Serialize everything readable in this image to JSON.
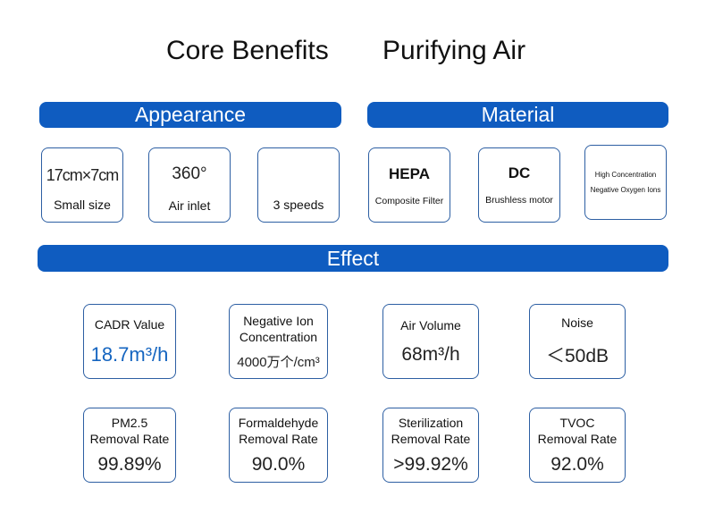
{
  "header": {
    "left_title": "Core Benefits",
    "right_title": "Purifying Air"
  },
  "sections": {
    "appearance": "Appearance",
    "material": "Material",
    "effect": "Effect"
  },
  "appearance": {
    "size": {
      "value": "17cm×7cm",
      "label": "Small size"
    },
    "inlet": {
      "value": "360°",
      "label": "Air inlet"
    },
    "speeds": {
      "label": "3 speeds"
    }
  },
  "material": {
    "hepa": {
      "value": "HEPA",
      "label": "Composite Filter"
    },
    "dc": {
      "value": "DC",
      "label": "Brushless motor"
    },
    "ions": {
      "line1": "High Concentration",
      "line2": "Negative Oxygen Ions"
    }
  },
  "effect": {
    "cadr": {
      "label": "CADR Value",
      "value": "18.7m³/h"
    },
    "negative_ion": {
      "label1": "Negative Ion",
      "label2": "Concentration",
      "value": "4000万个/cm³"
    },
    "air_volume": {
      "label": "Air Volume",
      "value": "68m³/h"
    },
    "noise": {
      "label": "Noise",
      "value": "＜50dB"
    },
    "pm25": {
      "label1": "PM2.5",
      "label2": "Removal Rate",
      "value": "99.89%"
    },
    "formaldehyde": {
      "label1": "Formaldehyde",
      "label2": "Removal Rate",
      "value": "90.0%"
    },
    "sterilization": {
      "label1": "Sterilization",
      "label2": "Removal Rate",
      "value": ">99.92%"
    },
    "tvoc": {
      "label1": "TVOC",
      "label2": "Removal Rate",
      "value": "92.0%"
    }
  },
  "colors": {
    "accent": "#0f5cc0",
    "border": "#2d5fa3",
    "highlight": "#1565c0"
  }
}
